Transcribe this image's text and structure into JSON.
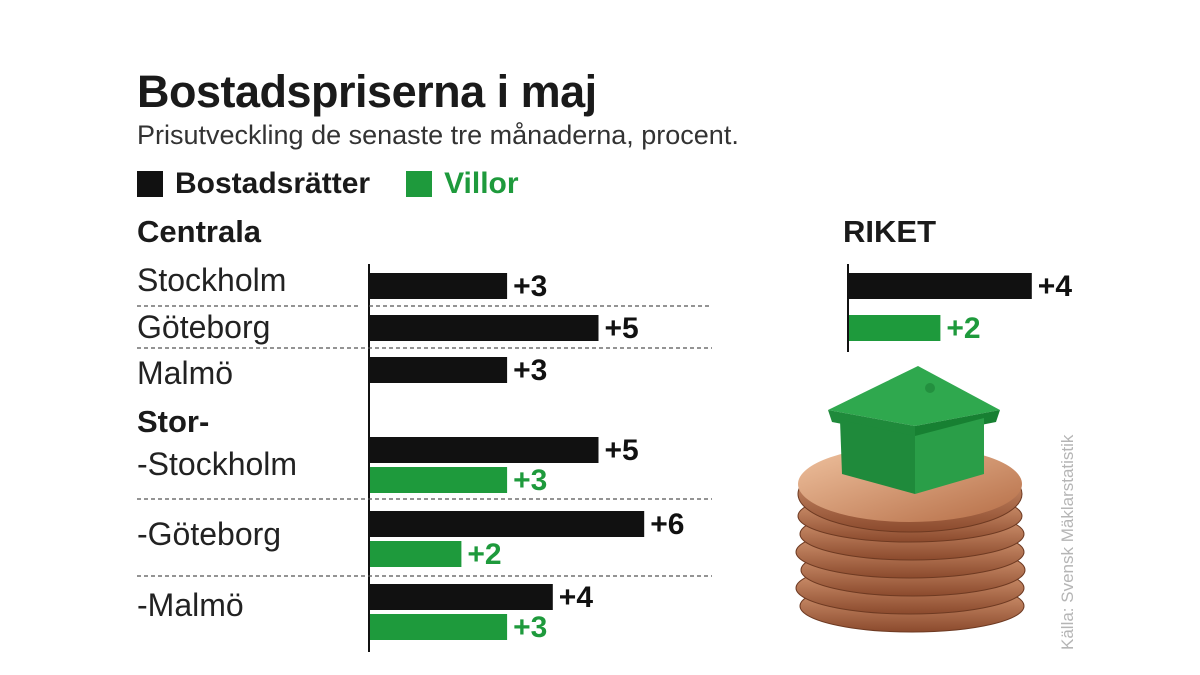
{
  "header": {
    "title": "Bostadspriserna i maj",
    "subtitle": "Prisutveckling de senaste tre månaderna, procent."
  },
  "legend": {
    "bostadsratter": "Bostadsrätter",
    "villor": "Villor"
  },
  "colors": {
    "bostadsratter": "#111111",
    "villor": "#1e9a3c"
  },
  "sections": {
    "centrala": "Centrala",
    "stor": "Stor-",
    "riket": "RIKET"
  },
  "cities": {
    "stockholm": "Stockholm",
    "goteborg": "Göteborg",
    "malmo": "Malmö",
    "stor_stockholm": "-Stockholm",
    "stor_goteborg": "-Göteborg",
    "stor_malmo": "-Malmö"
  },
  "source": "Källa: Svensk Mäklarstatistik",
  "chart_data": {
    "type": "bar",
    "title": "Bostadspriserna i maj",
    "subtitle": "Prisutveckling de senaste tre månaderna, procent.",
    "orientation": "horizontal",
    "categories": [
      "Stockholm",
      "Göteborg",
      "Malmö",
      "-Stockholm",
      "-Göteborg",
      "-Malmö",
      "RIKET"
    ],
    "series": [
      {
        "name": "Bostadsrätter",
        "values": [
          3,
          5,
          3,
          5,
          6,
          4,
          4
        ],
        "labels": [
          "+3",
          "+5",
          "+3",
          "+5",
          "+6",
          "+4",
          "+4"
        ]
      },
      {
        "name": "Villor",
        "values": [
          null,
          null,
          null,
          3,
          2,
          3,
          2
        ],
        "labels": [
          null,
          null,
          null,
          "+3",
          "+2",
          "+3",
          "+2"
        ]
      }
    ]
  }
}
